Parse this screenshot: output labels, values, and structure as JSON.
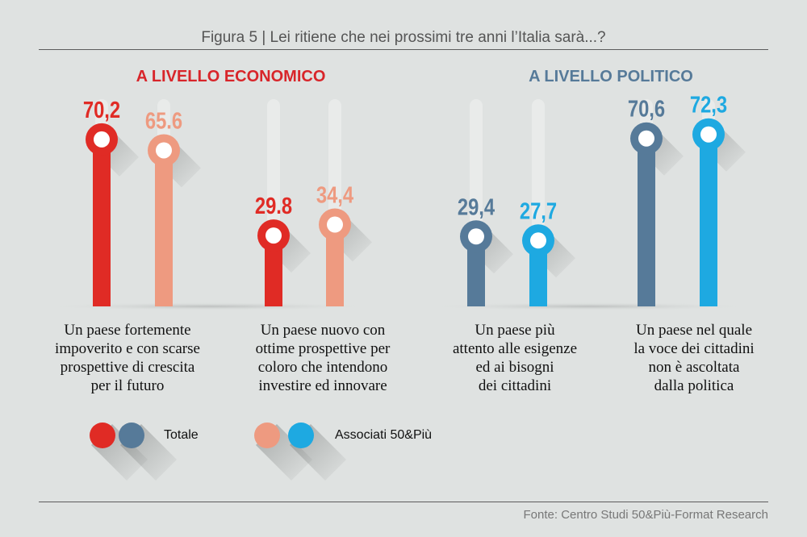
{
  "title": "Figura 5 | Lei ritiene che nei prossimi tre anni l’Italia sarà...?",
  "source": "Fonte: Centro Studi 50&Più-Format Research",
  "legend": {
    "totale": "Totale",
    "associati": "Associati 50&Più"
  },
  "colors": {
    "econ_totale": "#e02b25",
    "econ_associati": "#ee9a80",
    "pol_totale": "#567a99",
    "pol_associati": "#1ea9e1",
    "econ_title": "#d8252a",
    "pol_title": "#567a99"
  },
  "chart_data": [
    {
      "type": "bar",
      "title": "A LIVELLO ECONOMICO",
      "categories": [
        "Un paese fortemente\nimpoverito e con scarse\nprospettive di crescita\nper il futuro",
        "Un paese nuovo con\nottime prospettive per\ncoloro che intendono\ninvestire ed innovare"
      ],
      "series": [
        {
          "name": "Totale",
          "values": [
            70.2,
            29.8
          ],
          "labels": [
            "70,2",
            "29.8"
          ]
        },
        {
          "name": "Associati 50&Più",
          "values": [
            65.6,
            34.4
          ],
          "labels": [
            "65.6",
            "34,4"
          ]
        }
      ]
    },
    {
      "type": "bar",
      "title": "A LIVELLO POLITICO",
      "categories": [
        "Un paese più\nattento alle esigenze\ned ai bisogni\ndei cittadini",
        "Un paese nel quale\nla voce dei cittadini\nnon è ascoltata\ndalla politica"
      ],
      "series": [
        {
          "name": "Totale",
          "values": [
            29.4,
            70.6
          ],
          "labels": [
            "29,4",
            "70,6"
          ]
        },
        {
          "name": "Associati 50&Più",
          "values": [
            27.7,
            72.3
          ],
          "labels": [
            "27,7",
            "72,3"
          ]
        }
      ]
    }
  ]
}
